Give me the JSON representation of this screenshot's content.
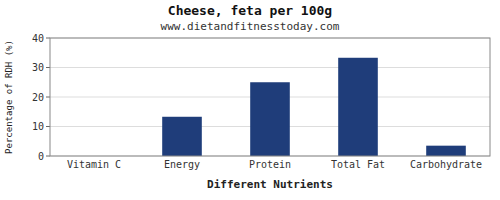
{
  "chart_data": {
    "type": "bar",
    "title": "Cheese, feta per 100g",
    "subtitle": "www.dietandfitnesstoday.com",
    "xlabel": "Different Nutrients",
    "ylabel": "Percentage of RDH (%)",
    "categories": [
      "Vitamin C",
      "Energy",
      "Protein",
      "Total Fat",
      "Carbohydrate"
    ],
    "values": [
      0.0,
      13.3,
      25.0,
      33.3,
      3.5
    ],
    "color": "#1f3d7a",
    "ylim": [
      0,
      40
    ],
    "yticks": [
      0,
      10,
      20,
      30,
      40
    ],
    "grid": true
  }
}
